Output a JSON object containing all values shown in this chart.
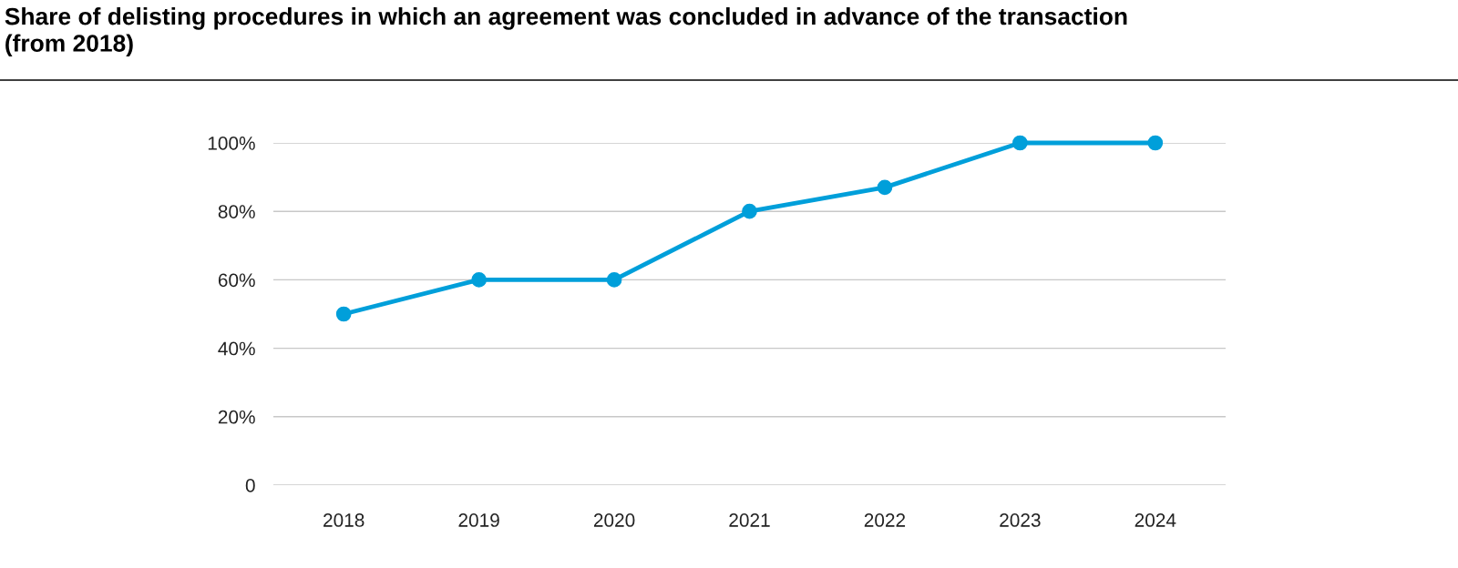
{
  "chart_data": {
    "type": "line",
    "title": "Share of delisting procedures in which an agreement was concluded in advance of the transaction\n(from 2018)",
    "categories": [
      "2018",
      "2019",
      "2020",
      "2021",
      "2022",
      "2023",
      "2024"
    ],
    "series": [
      {
        "color": "#009fda",
        "values": [
          50,
          60,
          60,
          80,
          87,
          100,
          100
        ]
      }
    ],
    "ylim": [
      0,
      100
    ],
    "yticks": [
      {
        "value": 0,
        "label": "0"
      },
      {
        "value": 20,
        "label": "20%"
      },
      {
        "value": 40,
        "label": "40%"
      },
      {
        "value": 60,
        "label": "60%"
      },
      {
        "value": 80,
        "label": "80%"
      },
      {
        "value": 100,
        "label": "100%"
      }
    ],
    "grid": "y",
    "marker": "circle",
    "line_style": "solid"
  }
}
